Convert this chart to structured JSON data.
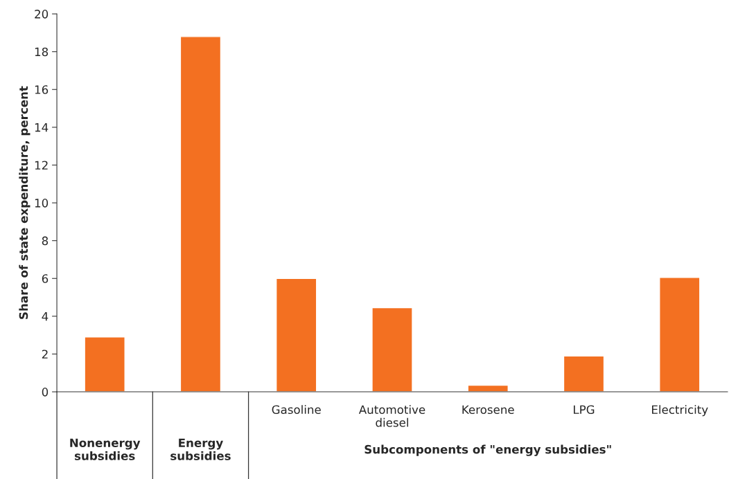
{
  "chart_data": {
    "type": "bar",
    "ylabel": "Share of state expenditure, percent",
    "categories": [
      null,
      null,
      "Gasoline",
      "Automotive diesel",
      "Kerosene",
      "LPG",
      "Electricity"
    ],
    "values": [
      2.9,
      18.8,
      6.0,
      4.45,
      0.35,
      1.9,
      6.05
    ],
    "color": "#f37021",
    "ylim": [
      0,
      20
    ],
    "yticks": [
      0,
      2,
      4,
      6,
      8,
      10,
      12,
      14,
      16,
      18,
      20
    ],
    "grid": false,
    "annotations": [
      "Nonenergy subsidies",
      "Energy subsidies",
      "Subcomponents of \"energy subsidies\""
    ]
  }
}
